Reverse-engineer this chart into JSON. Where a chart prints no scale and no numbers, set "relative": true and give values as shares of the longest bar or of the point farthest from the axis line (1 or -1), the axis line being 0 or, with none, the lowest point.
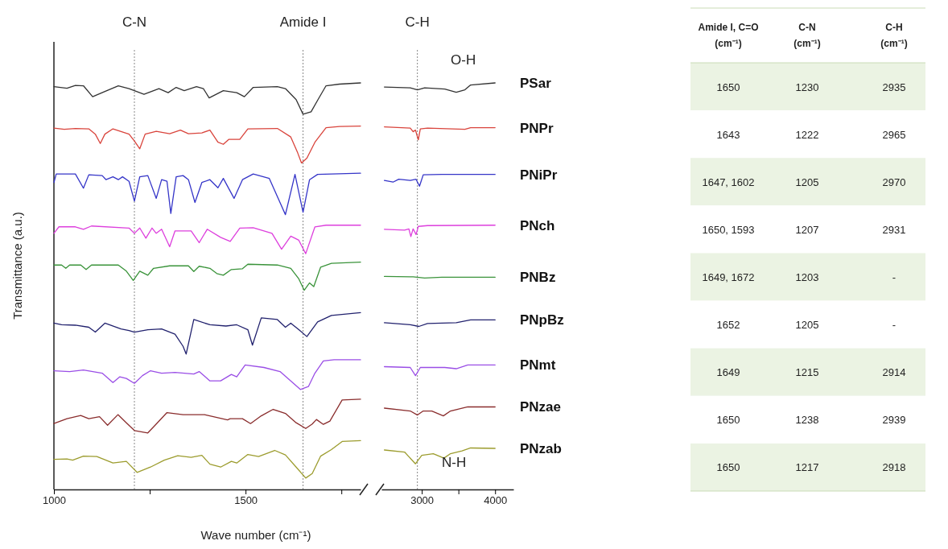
{
  "chart_data": [
    {
      "type": "line",
      "relative": true,
      "ylabel": "Transmittance (a.u.)",
      "xlabel": "Wave number (cm⁻¹)",
      "xlim": [
        1000,
        1800
      ],
      "xticks": [
        1000,
        {
          "value": 1250,
          "label": null
        },
        1500,
        {
          "value": 1750,
          "label": null
        }
      ],
      "tick_labels": "x",
      "ref_lines": [
        {
          "axis": "x",
          "value": 1210,
          "label": "C-N"
        },
        {
          "axis": "x",
          "value": 1650,
          "label": "Amide I"
        }
      ],
      "series": [
        {
          "color": "#333333",
          "x": [
            1000,
            1034,
            1056,
            1077,
            1101,
            1133,
            1168,
            1196,
            1210,
            1235,
            1274,
            1298,
            1319,
            1340,
            1372,
            1390,
            1405,
            1442,
            1477,
            1497,
            1520,
            1583,
            1604,
            1632,
            1650,
            1671,
            1689,
            1710,
            1745,
            1800
          ],
          "values": [
            0.991,
            0.987,
            0.994,
            0.993,
            0.966,
            0.979,
            0.993,
            0.986,
            0.981,
            0.972,
            0.986,
            0.976,
            0.989,
            0.981,
            0.991,
            0.986,
            0.963,
            0.981,
            0.976,
            0.966,
            0.989,
            0.991,
            0.986,
            0.959,
            0.923,
            0.929,
            0.959,
            0.993,
            0.997,
            1
          ]
        },
        {
          "color": "#d9443c",
          "x": [
            1000,
            1027,
            1056,
            1091,
            1108,
            1121,
            1133,
            1154,
            1196,
            1210,
            1224,
            1238,
            1267,
            1302,
            1330,
            1351,
            1386,
            1407,
            1428,
            1442,
            1456,
            1485,
            1506,
            1583,
            1618,
            1636,
            1646,
            1660,
            1681,
            1710,
            1745,
            1800
          ],
          "values": [
            0.889,
            0.886,
            0.888,
            0.887,
            0.874,
            0.851,
            0.874,
            0.887,
            0.874,
            0.857,
            0.838,
            0.874,
            0.881,
            0.875,
            0.884,
            0.875,
            0.877,
            0.884,
            0.854,
            0.849,
            0.861,
            0.861,
            0.887,
            0.888,
            0.867,
            0.828,
            0.803,
            0.815,
            0.854,
            0.89,
            0.893,
            0.894
          ]
        },
        {
          "color": "#3535c8",
          "x": [
            1000,
            1006,
            1056,
            1077,
            1091,
            1126,
            1136,
            1154,
            1168,
            1179,
            1196,
            1210,
            1224,
            1245,
            1267,
            1281,
            1295,
            1305,
            1319,
            1337,
            1351,
            1368,
            1386,
            1407,
            1428,
            1442,
            1470,
            1492,
            1520,
            1562,
            1604,
            1629,
            1650,
            1667,
            1688,
            1800
          ],
          "values": [
            0.755,
            0.776,
            0.776,
            0.741,
            0.774,
            0.772,
            0.762,
            0.769,
            0.762,
            0.769,
            0.758,
            0.709,
            0.769,
            0.772,
            0.716,
            0.762,
            0.758,
            0.679,
            0.769,
            0.772,
            0.762,
            0.706,
            0.755,
            0.762,
            0.742,
            0.765,
            0.716,
            0.762,
            0.776,
            0.765,
            0.676,
            0.775,
            0.682,
            0.762,
            0.775,
            0.778
          ]
        },
        {
          "color": "#dd3fdd",
          "x": [
            1000,
            1013,
            1056,
            1077,
            1098,
            1196,
            1210,
            1224,
            1240,
            1256,
            1267,
            1281,
            1302,
            1316,
            1358,
            1379,
            1400,
            1435,
            1460,
            1485,
            1520,
            1569,
            1594,
            1618,
            1639,
            1657,
            1681,
            1710,
            1800
          ],
          "values": [
            0.63,
            0.646,
            0.646,
            0.64,
            0.648,
            0.643,
            0.63,
            0.643,
            0.618,
            0.643,
            0.63,
            0.64,
            0.597,
            0.636,
            0.636,
            0.607,
            0.64,
            0.62,
            0.61,
            0.643,
            0.644,
            0.63,
            0.591,
            0.623,
            0.613,
            0.58,
            0.646,
            0.65,
            0.65
          ]
        },
        {
          "color": "#3a933a",
          "x": [
            1000,
            1020,
            1031,
            1041,
            1070,
            1084,
            1098,
            1168,
            1189,
            1207,
            1224,
            1245,
            1260,
            1302,
            1351,
            1365,
            1379,
            1407,
            1425,
            1442,
            1463,
            1492,
            1506,
            1583,
            1618,
            1639,
            1653,
            1667,
            1678,
            1696,
            1724,
            1800
          ],
          "values": [
            0.552,
            0.552,
            0.544,
            0.552,
            0.552,
            0.541,
            0.552,
            0.552,
            0.537,
            0.514,
            0.537,
            0.527,
            0.544,
            0.55,
            0.55,
            0.536,
            0.549,
            0.544,
            0.531,
            0.527,
            0.541,
            0.543,
            0.554,
            0.552,
            0.544,
            0.518,
            0.49,
            0.508,
            0.499,
            0.547,
            0.556,
            0.559
          ]
        },
        {
          "color": "#22226e",
          "x": [
            1000,
            1020,
            1056,
            1091,
            1108,
            1133,
            1175,
            1196,
            1210,
            1245,
            1281,
            1316,
            1337,
            1345,
            1365,
            1407,
            1449,
            1477,
            1506,
            1518,
            1541,
            1583,
            1604,
            1618,
            1639,
            1660,
            1688,
            1724,
            1800
          ],
          "values": [
            0.409,
            0.405,
            0.404,
            0.399,
            0.387,
            0.409,
            0.395,
            0.391,
            0.387,
            0.393,
            0.395,
            0.382,
            0.352,
            0.333,
            0.418,
            0.405,
            0.402,
            0.405,
            0.393,
            0.355,
            0.422,
            0.418,
            0.399,
            0.409,
            0.393,
            0.376,
            0.412,
            0.428,
            0.435
          ]
        },
        {
          "color": "#9a4ee6",
          "x": [
            1000,
            1041,
            1077,
            1126,
            1154,
            1172,
            1189,
            1210,
            1231,
            1252,
            1281,
            1316,
            1365,
            1379,
            1407,
            1435,
            1463,
            1477,
            1499,
            1548,
            1590,
            1618,
            1643,
            1664,
            1681,
            1703,
            1731,
            1800
          ],
          "values": [
            0.292,
            0.29,
            0.294,
            0.286,
            0.263,
            0.277,
            0.273,
            0.261,
            0.28,
            0.292,
            0.286,
            0.288,
            0.284,
            0.29,
            0.267,
            0.267,
            0.283,
            0.277,
            0.306,
            0.3,
            0.29,
            0.267,
            0.246,
            0.253,
            0.286,
            0.316,
            0.319,
            0.319
          ]
        },
        {
          "color": "#8a2d2d",
          "x": [
            1000,
            1034,
            1070,
            1091,
            1119,
            1140,
            1167,
            1189,
            1210,
            1245,
            1267,
            1295,
            1337,
            1393,
            1453,
            1460,
            1492,
            1513,
            1541,
            1572,
            1604,
            1632,
            1657,
            1674,
            1685,
            1703,
            1720,
            1752,
            1800
          ],
          "values": [
            0.162,
            0.174,
            0.182,
            0.174,
            0.179,
            0.158,
            0.184,
            0.164,
            0.145,
            0.139,
            0.161,
            0.189,
            0.184,
            0.184,
            0.171,
            0.174,
            0.174,
            0.162,
            0.181,
            0.197,
            0.187,
            0.164,
            0.15,
            0.161,
            0.172,
            0.16,
            0.168,
            0.22,
            0.222
          ]
        },
        {
          "color": "#9c9c2e",
          "x": [
            1000,
            1034,
            1049,
            1077,
            1112,
            1154,
            1189,
            1217,
            1252,
            1288,
            1323,
            1358,
            1386,
            1407,
            1435,
            1463,
            1477,
            1506,
            1534,
            1576,
            1604,
            1632,
            1657,
            1674,
            1696,
            1724,
            1752,
            1800
          ],
          "values": [
            0.074,
            0.075,
            0.072,
            0.082,
            0.081,
            0.065,
            0.069,
            0.042,
            0.055,
            0.072,
            0.083,
            0.079,
            0.084,
            0.062,
            0.055,
            0.069,
            0.065,
            0.086,
            0.081,
            0.096,
            0.085,
            0.055,
            0.028,
            0.039,
            0.082,
            0.098,
            0.118,
            0.12
          ]
        }
      ]
    },
    {
      "type": "line",
      "relative": true,
      "xlim": [
        2450,
        4250
      ],
      "xticks": [
        3000,
        {
          "value": 3500,
          "label": null
        },
        4000
      ],
      "tick_labels": "x",
      "ref_lines": [
        {
          "axis": "x",
          "value": 2940,
          "label": "C-H"
        }
      ],
      "annotations": [
        "O-H",
        "N-H"
      ],
      "series": [
        {
          "name": "PSar",
          "color": "#333333",
          "x": [
            2490,
            2843,
            2941,
            3039,
            3314,
            3470,
            3588,
            3666,
            4000
          ],
          "values": [
            0.99,
            0.988,
            0.983,
            0.988,
            0.985,
            0.977,
            0.983,
            0.995,
            1
          ]
        },
        {
          "name": "PNPr",
          "color": "#d9443c",
          "x": [
            2490,
            2843,
            2882,
            2914,
            2953,
            2980,
            3078,
            3588,
            3666,
            4000
          ],
          "values": [
            0.892,
            0.889,
            0.88,
            0.884,
            0.86,
            0.887,
            0.889,
            0.886,
            0.89,
            0.89
          ]
        },
        {
          "name": "PNiPr",
          "color": "#3535c8",
          "x": [
            2490,
            2608,
            2686,
            2843,
            2922,
            2969,
            3020,
            3274,
            4000
          ],
          "values": [
            0.76,
            0.756,
            0.763,
            0.76,
            0.763,
            0.746,
            0.774,
            0.775,
            0.775
          ]
        },
        {
          "name": "PNch",
          "color": "#dd3fdd",
          "x": [
            2490,
            2765,
            2824,
            2851,
            2882,
            2922,
            2953,
            3078,
            4000
          ],
          "values": [
            0.64,
            0.638,
            0.641,
            0.622,
            0.641,
            0.627,
            0.647,
            0.649,
            0.65
          ]
        },
        {
          "name": "PNBz",
          "color": "#3a933a",
          "x": [
            2490,
            2882,
            3039,
            3274,
            4000
          ],
          "values": [
            0.524,
            0.523,
            0.52,
            0.522,
            0.522
          ]
        },
        {
          "name": "PNpBz",
          "color": "#22226e",
          "x": [
            2490,
            2843,
            2961,
            3078,
            3470,
            3666,
            4000
          ],
          "values": [
            0.41,
            0.405,
            0.401,
            0.408,
            0.41,
            0.417,
            0.417
          ]
        },
        {
          "name": "PNmt",
          "color": "#9a4ee6",
          "x": [
            2490,
            2843,
            2914,
            2980,
            3314,
            3470,
            3627,
            4000
          ],
          "values": [
            0.302,
            0.3,
            0.28,
            0.3,
            0.3,
            0.297,
            0.306,
            0.306
          ]
        },
        {
          "name": "PNzae",
          "color": "#8a2d2d",
          "x": [
            2490,
            2843,
            2941,
            3020,
            3137,
            3294,
            3392,
            3627,
            4000
          ],
          "values": [
            0.2,
            0.193,
            0.183,
            0.193,
            0.193,
            0.181,
            0.193,
            0.203,
            0.203
          ]
        },
        {
          "name": "PNzab",
          "color": "#9c9c2e",
          "x": [
            2490,
            2765,
            2914,
            3000,
            3157,
            3302,
            3392,
            3549,
            3666,
            4000
          ],
          "values": [
            0.097,
            0.092,
            0.063,
            0.084,
            0.088,
            0.077,
            0.088,
            0.095,
            0.102,
            0.101
          ]
        }
      ]
    },
    {
      "type": "other",
      "categories": [
        "Amide I, C=O (cm⁻¹)",
        "C-N (cm⁻¹)",
        "C-H (cm⁻¹)"
      ],
      "cell_labels": [
        [
          "1650",
          "1230",
          "2935"
        ],
        [
          "1643",
          "1222",
          "2965"
        ],
        [
          "1647, 1602",
          "1205",
          "2970"
        ],
        [
          "1650, 1593",
          "1207",
          "2931"
        ],
        [
          "1649, 1672",
          "1203",
          "-"
        ],
        [
          "1652",
          "1205",
          "-"
        ],
        [
          "1649",
          "1215",
          "2914"
        ],
        [
          "1650",
          "1238",
          "2939"
        ],
        [
          "1650",
          "1217",
          "2918"
        ]
      ]
    }
  ]
}
